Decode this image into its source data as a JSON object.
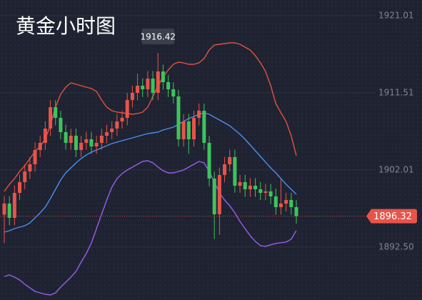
{
  "chart_data": {
    "type": "candlestick",
    "title": "黄金小时图",
    "open": [
      1896.5,
      1897.87,
      1896.11,
      1899.19,
      1900.51,
      1901.83,
      1902.71,
      1904.47,
      1905.35,
      1907.11,
      1909.75,
      1908.43,
      1906.67,
      1905.35,
      1906.23,
      1904.47,
      1905.35,
      1905.79,
      1904.91,
      1905.35,
      1906.23,
      1906.67,
      1907.11,
      1907.99,
      1908.43,
      1910.63,
      1911.51,
      1912.39,
      1911.95,
      1913.27,
      1911.51,
      1914.15,
      1912.83,
      1911.95,
      1911.07,
      1905.79,
      1907.99,
      1905.79,
      1908.43,
      1909.31,
      1905.35,
      1900.95,
      1896.55,
      1901.39,
      1902.71,
      1903.59,
      1900.07,
      1900.51,
      1899.63,
      1900.07,
      1899.63,
      1899.19,
      1899.37,
      1898.75,
      1897.43,
      1897.87,
      1898.31,
      1897.43
    ],
    "high": [
      1898.8,
      1898.8,
      1900.1,
      1901.4,
      1902.7,
      1903.6,
      1905.4,
      1906.2,
      1908.0,
      1910.6,
      1910.6,
      1909.3,
      1907.6,
      1907.1,
      1907.1,
      1906.2,
      1906.7,
      1906.7,
      1906.2,
      1907.1,
      1907.6,
      1908.0,
      1908.9,
      1909.3,
      1911.5,
      1912.4,
      1913.9,
      1913.3,
      1914.2,
      1914.2,
      1916.42,
      1915.0,
      1913.7,
      1912.8,
      1911.9,
      1908.9,
      1908.9,
      1909.3,
      1910.2,
      1910.2,
      1906.2,
      1901.8,
      1902.3,
      1903.6,
      1904.5,
      1904.5,
      1901.4,
      1901.4,
      1901.0,
      1901.0,
      1900.5,
      1900.3,
      1900.3,
      1899.7,
      1900.9,
      1899.2,
      1899.2,
      1898.3
    ],
    "low": [
      1893.0,
      1895.2,
      1895.2,
      1898.3,
      1899.6,
      1900.9,
      1901.8,
      1903.6,
      1904.5,
      1906.2,
      1907.5,
      1905.8,
      1904.5,
      1904.5,
      1903.6,
      1903.6,
      1904.5,
      1904.0,
      1904.0,
      1904.5,
      1905.3,
      1905.8,
      1906.2,
      1907.1,
      1907.5,
      1909.7,
      1910.6,
      1911.0,
      1911.0,
      1910.6,
      1910.6,
      1911.9,
      1911.0,
      1910.2,
      1904.9,
      1904.9,
      1904.0,
      1904.9,
      1907.5,
      1904.5,
      1900.0,
      1893.5,
      1894.0,
      1900.5,
      1901.8,
      1899.2,
      1899.2,
      1898.7,
      1898.7,
      1898.7,
      1898.3,
      1898.3,
      1897.8,
      1896.5,
      1896.5,
      1896.9,
      1896.5,
      1895.4
    ],
    "close": [
      1897.87,
      1896.11,
      1899.19,
      1900.51,
      1901.83,
      1902.71,
      1904.47,
      1905.35,
      1907.11,
      1909.75,
      1908.43,
      1906.67,
      1905.35,
      1906.23,
      1904.47,
      1905.35,
      1905.79,
      1904.91,
      1905.35,
      1906.23,
      1906.67,
      1907.11,
      1907.99,
      1908.43,
      1910.63,
      1911.51,
      1912.39,
      1911.95,
      1913.27,
      1911.51,
      1914.15,
      1912.83,
      1911.95,
      1911.07,
      1905.79,
      1907.99,
      1905.79,
      1908.43,
      1909.31,
      1905.35,
      1900.95,
      1896.55,
      1901.39,
      1902.71,
      1903.59,
      1900.07,
      1900.51,
      1899.63,
      1900.07,
      1899.63,
      1899.19,
      1899.37,
      1898.75,
      1897.43,
      1897.87,
      1898.31,
      1897.43,
      1896.32
    ],
    "up_color": "#e8544a",
    "down_color": "#3ec45c",
    "series": [
      {
        "color": "#e0533f",
        "values": [
          1899.37,
          1900.25,
          1900.95,
          1901.83,
          1902.53,
          1903.41,
          1904.29,
          1904.91,
          1905.79,
          1907.55,
          1909.75,
          1911.33,
          1912.21,
          1912.74,
          1912.57,
          1912.39,
          1912.21,
          1912.04,
          1911.69,
          1910.63,
          1909.75,
          1909.31,
          1909.13,
          1909.05,
          1908.96,
          1908.87,
          1908.96,
          1909.13,
          1909.75,
          1911.07,
          1912.39,
          1913.45,
          1914.33,
          1915.03,
          1915.29,
          1915.21,
          1915.03,
          1915.03,
          1915.21,
          1915.73,
          1916.79,
          1917.41,
          1917.49,
          1917.58,
          1917.67,
          1917.67,
          1917.49,
          1917.14,
          1916.79,
          1916.09,
          1915.21,
          1914.15,
          1912.39,
          1910.19,
          1909.05,
          1907.99,
          1906.23,
          1903.77
        ]
      },
      {
        "color": "#4a8ff0",
        "values": [
          1894.35,
          1894.53,
          1894.79,
          1894.97,
          1895.14,
          1895.49,
          1896.11,
          1896.73,
          1897.43,
          1898.49,
          1899.63,
          1900.77,
          1901.65,
          1902.27,
          1902.89,
          1903.41,
          1903.85,
          1904.21,
          1904.47,
          1904.73,
          1905.0,
          1905.26,
          1905.44,
          1905.61,
          1905.79,
          1905.97,
          1906.14,
          1906.32,
          1906.49,
          1906.58,
          1906.67,
          1906.93,
          1907.11,
          1907.29,
          1907.64,
          1907.99,
          1908.34,
          1908.61,
          1908.87,
          1909.05,
          1908.87,
          1908.52,
          1908.17,
          1907.81,
          1907.46,
          1906.93,
          1906.41,
          1905.79,
          1905.09,
          1904.38,
          1903.68,
          1902.97,
          1902.27,
          1901.65,
          1900.95,
          1900.25,
          1899.63,
          1899.01
        ]
      },
      {
        "color": "#9b5cf0",
        "values": [
          1888.89,
          1889.07,
          1888.81,
          1888.45,
          1887.93,
          1887.49,
          1887.05,
          1886.87,
          1886.69,
          1886.61,
          1886.87,
          1887.57,
          1888.19,
          1888.81,
          1889.51,
          1890.65,
          1891.71,
          1893.03,
          1894.79,
          1896.55,
          1898.31,
          1899.89,
          1900.95,
          1901.57,
          1902.01,
          1902.36,
          1902.71,
          1903.06,
          1903.15,
          1902.89,
          1902.36,
          1901.92,
          1901.65,
          1901.65,
          1901.83,
          1902.01,
          1902.36,
          1902.71,
          1903.06,
          1902.89,
          1901.83,
          1900.51,
          1899.19,
          1898.31,
          1897.61,
          1896.73,
          1895.67,
          1894.79,
          1893.91,
          1893.21,
          1892.69,
          1892.61,
          1892.78,
          1892.96,
          1893.05,
          1893.13,
          1893.49,
          1894.55
        ]
      }
    ],
    "ylim": [
      1885.99,
      1922.95
    ],
    "yticks": [
      {
        "value": 1892.5,
        "label": "1892.50"
      },
      1902.01,
      1911.51,
      1921.01
    ],
    "grid": true,
    "max_label": "1916.42",
    "last_label": "1896.32"
  }
}
